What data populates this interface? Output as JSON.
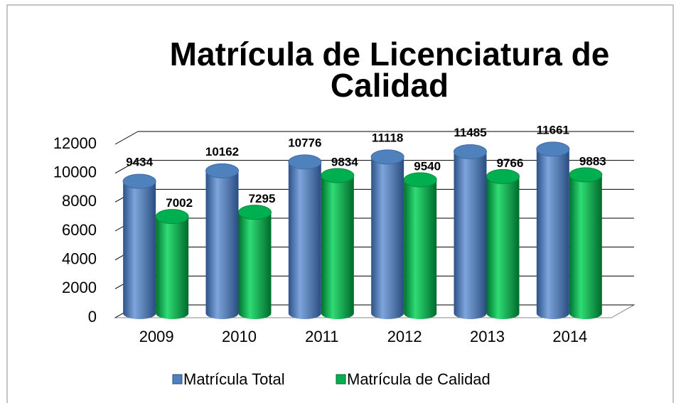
{
  "chart_data": {
    "type": "bar",
    "title": "Matrícula de Licenciatura de Calidad",
    "categories": [
      "2009",
      "2010",
      "2011",
      "2012",
      "2013",
      "2014"
    ],
    "series": [
      {
        "name": "Matrícula Total",
        "color": "#4f81bd",
        "values": [
          9434,
          10162,
          10776,
          11118,
          11485,
          11661
        ]
      },
      {
        "name": "Matrícula de Calidad",
        "color": "#00b050",
        "values": [
          7002,
          7295,
          9834,
          9540,
          9766,
          9883
        ]
      }
    ],
    "ylim": [
      0,
      12000
    ],
    "yticks": [
      0,
      2000,
      4000,
      6000,
      8000,
      10000,
      12000
    ],
    "grid": true,
    "legend": "bottom"
  }
}
